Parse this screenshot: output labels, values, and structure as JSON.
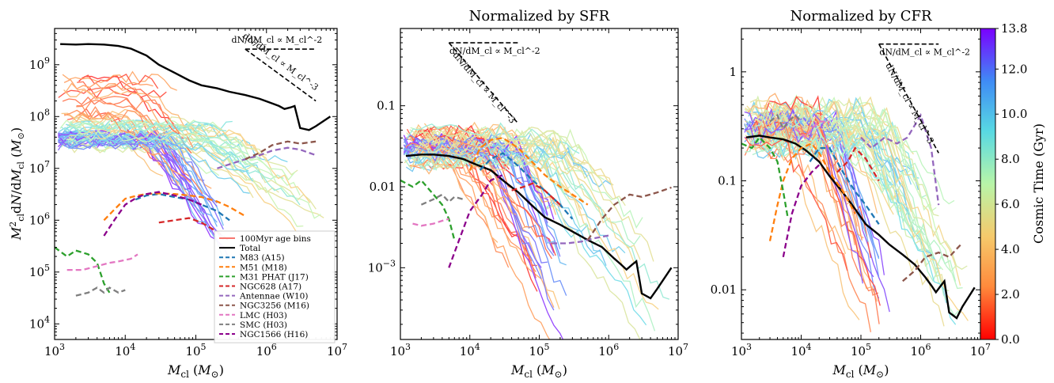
{
  "chart_data": [
    {
      "type": "line",
      "title": "",
      "xlabel": "M_cl (M_⊙)",
      "ylabel": "M²_cl dN/dM_cl (M_⊙)",
      "xscale": "log",
      "yscale": "log",
      "xlim": [
        1000,
        10000000
      ],
      "ylim": [
        5000,
        5000000000
      ],
      "xticks": [
        "10^3",
        "10^4",
        "10^5",
        "10^6",
        "10^7"
      ],
      "yticks": [
        "10^4",
        "10^5",
        "10^6",
        "10^7",
        "10^8",
        "10^9"
      ],
      "annotations": [
        "dN/dM_cl ∝ M_cl^-2",
        "dN/dM_cl ∝ M_cl^-3"
      ],
      "legend_position": "bottom-right",
      "legend": [
        {
          "label": "100Myr age bins",
          "color": "#f7766f",
          "style": "solid"
        },
        {
          "label": "Total",
          "color": "#000000",
          "style": "solid"
        },
        {
          "label": "M83 (A15)",
          "color": "#1f77b4",
          "style": "dashed"
        },
        {
          "label": "M51 (M18)",
          "color": "#ff7f0e",
          "style": "dashed"
        },
        {
          "label": "M31 PHAT (J17)",
          "color": "#2ca02c",
          "style": "dashed"
        },
        {
          "label": "NGC628 (A17)",
          "color": "#d62728",
          "style": "dashed"
        },
        {
          "label": "Antennae (W10)",
          "color": "#9467bd",
          "style": "dashed"
        },
        {
          "label": "NGC3256 (M16)",
          "color": "#8c564b",
          "style": "dashed"
        },
        {
          "label": "LMC (H03)",
          "color": "#e377c2",
          "style": "dashed"
        },
        {
          "label": "SMC (H03)",
          "color": "#7f7f7f",
          "style": "dashed"
        },
        {
          "label": "NGC1566 (H16)",
          "color": "#8b008b",
          "style": "dashed"
        }
      ],
      "series": [
        {
          "name": "Total",
          "color": "#000000",
          "x": [
            1200,
            2000,
            3000,
            5000,
            8000,
            12000,
            20000,
            30000,
            50000,
            80000,
            120000,
            200000,
            300000,
            500000,
            800000,
            1200000,
            1500000,
            1800000,
            2200000,
            2500000,
            3000000,
            4000000,
            5000000,
            8000000
          ],
          "y": [
            2500000000.0,
            2450000000.0,
            2500000000.0,
            2450000000.0,
            2300000000.0,
            2050000000.0,
            1500000000.0,
            1000000000.0,
            700000000.0,
            500000000.0,
            400000000.0,
            350000000.0,
            300000000.0,
            260000000.0,
            220000000.0,
            180000000.0,
            160000000.0,
            140000000.0,
            150000000.0,
            160000000.0,
            60000000.0,
            55000000.0,
            65000000.0,
            100000000.0
          ]
        },
        {
          "name": "M83 (A15)",
          "color": "#1f77b4",
          "x": [
            14000,
            20000,
            30000,
            50000,
            80000,
            120000,
            200000,
            300000
          ],
          "y": [
            2500000.0,
            3000000.0,
            3200000.0,
            2800000.0,
            2500000.0,
            2000000.0,
            1500000.0,
            1000000.0
          ]
        },
        {
          "name": "M51 (M18)",
          "color": "#ff7f0e",
          "x": [
            5000,
            7000,
            10000,
            15000,
            20000,
            30000,
            50000,
            80000,
            120000,
            200000,
            300000,
            500000
          ],
          "y": [
            1000000.0,
            1600000.0,
            2600000.0,
            3000000.0,
            3200000.0,
            3300000.0,
            3200000.0,
            3000000.0,
            2800000.0,
            2300000.0,
            1800000.0,
            1200000.0
          ]
        },
        {
          "name": "M31 PHAT (J17)",
          "color": "#2ca02c",
          "x": [
            1000,
            1500,
            2000,
            3000,
            4000,
            5000,
            6000
          ],
          "y": [
            300000.0,
            200000.0,
            260000.0,
            220000.0,
            150000.0,
            60000.0,
            40000.0
          ]
        },
        {
          "name": "NGC628 (A17)",
          "color": "#d62728",
          "x": [
            30000,
            50000,
            80000,
            120000,
            200000,
            300000
          ],
          "y": [
            900000.0,
            1000000.0,
            1100000.0,
            900000.0,
            600000.0,
            400000.0
          ]
        },
        {
          "name": "Antennae (W10)",
          "color": "#9467bd",
          "x": [
            200000,
            300000,
            500000,
            800000,
            1200000,
            2000000,
            3000000,
            5000000
          ],
          "y": [
            10000000.0,
            12000000.0,
            15000000.0,
            18000000.0,
            22000000.0,
            25000000.0,
            23000000.0,
            18000000.0
          ]
        },
        {
          "name": "NGC3256 (M16)",
          "color": "#8c564b",
          "x": [
            500000,
            800000,
            1200000,
            2000000,
            3000000,
            5000000
          ],
          "y": [
            15000000.0,
            20000000.0,
            28000000.0,
            33000000.0,
            30000000.0,
            33000000.0
          ]
        },
        {
          "name": "LMC (H03)",
          "color": "#e377c2",
          "x": [
            1500,
            2500,
            4000,
            6000,
            8000,
            12000,
            15000
          ],
          "y": [
            110000.0,
            110000.0,
            130000.0,
            150000.0,
            160000.0,
            180000.0,
            220000.0
          ]
        },
        {
          "name": "SMC (H03)",
          "color": "#7f7f7f",
          "x": [
            2000,
            3000,
            4000,
            5000,
            6000,
            8000,
            10000
          ],
          "y": [
            35000.0,
            40000.0,
            50000.0,
            40000.0,
            50000.0,
            40000.0,
            45000.0
          ]
        },
        {
          "name": "NGC1566 (H16)",
          "color": "#8b008b",
          "x": [
            5000,
            7000,
            10000,
            15000,
            20000,
            30000,
            50000,
            80000,
            120000
          ],
          "y": [
            500000.0,
            1000000.0,
            2000000.0,
            2800000.0,
            3200000.0,
            3500000.0,
            3000000.0,
            2500000.0,
            2000000.0
          ]
        }
      ]
    },
    {
      "type": "line",
      "title": "Normalized by SFR",
      "xlabel": "M_cl (M_⊙)",
      "ylabel": "",
      "xscale": "log",
      "yscale": "log",
      "xlim": [
        1000,
        10000000
      ],
      "ylim": [
        0.00013,
        0.9
      ],
      "xticks": [
        "10^3",
        "10^4",
        "10^5",
        "10^6",
        "10^7"
      ],
      "yticks": [
        "10^-3",
        "0.01",
        "0.1"
      ],
      "annotations": [
        "dN/dM_cl ∝ M_cl^-2",
        "dN/dM_cl ∝ M_cl^-3"
      ],
      "series": [
        {
          "name": "Total",
          "color": "#000000",
          "x": [
            1200,
            2000,
            3000,
            5000,
            8000,
            12000,
            20000,
            30000,
            50000,
            80000,
            120000,
            200000,
            300000,
            500000,
            800000,
            1200000,
            1500000,
            1800000,
            2200000,
            2500000,
            3000000,
            4000000,
            5000000,
            8000000
          ],
          "y": [
            0.024,
            0.025,
            0.025,
            0.024,
            0.022,
            0.019,
            0.016,
            0.012,
            0.0085,
            0.0058,
            0.0042,
            0.0034,
            0.0028,
            0.0022,
            0.0018,
            0.0013,
            0.0011,
            0.00095,
            0.0011,
            0.0012,
            0.00048,
            0.00042,
            0.00055,
            0.001
          ]
        },
        {
          "name": "M83 (A15)",
          "color": "#1f77b4",
          "x": [
            14000,
            20000,
            30000,
            50000,
            80000,
            120000,
            200000,
            300000
          ],
          "y": [
            0.016,
            0.022,
            0.026,
            0.018,
            0.012,
            0.009,
            0.006,
            0.004
          ]
        },
        {
          "name": "M51 (M18)",
          "color": "#ff7f0e",
          "x": [
            10000,
            14000,
            20000,
            30000,
            50000,
            80000,
            120000,
            200000,
            300000,
            500000
          ],
          "y": [
            0.016,
            0.03,
            0.038,
            0.04,
            0.03,
            0.02,
            0.014,
            0.01,
            0.008,
            0.006
          ]
        },
        {
          "name": "M31 PHAT (J17)",
          "color": "#2ca02c",
          "x": [
            1000,
            1500,
            2000,
            3000,
            4000,
            5000,
            6000
          ],
          "y": [
            0.012,
            0.01,
            0.012,
            0.008,
            0.006,
            0.004,
            0.0022
          ]
        },
        {
          "name": "NGC628 (A17)",
          "color": "#d62728",
          "x": [
            40000,
            60000,
            80000,
            120000,
            200000
          ],
          "y": [
            0.009,
            0.01,
            0.011,
            0.009,
            0.006
          ]
        },
        {
          "name": "Antennae (W10)",
          "color": "#9467bd",
          "x": [
            150000,
            250000,
            400000,
            600000,
            1000000
          ],
          "y": [
            0.002,
            0.002,
            0.0021,
            0.0023,
            0.0025
          ]
        },
        {
          "name": "NGC3256 (M16)",
          "color": "#8c564b",
          "x": [
            500000,
            800000,
            1200000,
            2000000,
            3000000,
            5000000,
            8000000
          ],
          "y": [
            0.0022,
            0.004,
            0.006,
            0.008,
            0.0075,
            0.0085,
            0.0098
          ]
        },
        {
          "name": "LMC (H03)",
          "color": "#e377c2",
          "x": [
            1500,
            2000,
            3000,
            4000,
            5000
          ],
          "y": [
            0.0035,
            0.0033,
            0.0035,
            0.0038,
            0.004
          ]
        },
        {
          "name": "SMC (H03)",
          "color": "#7f7f7f",
          "x": [
            2000,
            3000,
            4000,
            5000,
            6000,
            8000
          ],
          "y": [
            0.006,
            0.007,
            0.008,
            0.0065,
            0.0075,
            0.007
          ]
        },
        {
          "name": "NGC1566 (H16)",
          "color": "#8b008b",
          "x": [
            5000,
            7000,
            10000,
            15000,
            20000,
            30000
          ],
          "y": [
            0.001,
            0.0022,
            0.005,
            0.008,
            0.012,
            0.014
          ]
        }
      ]
    },
    {
      "type": "line",
      "title": "Normalized by CFR",
      "xlabel": "M_cl (M_⊙)",
      "ylabel": "",
      "xscale": "log",
      "yscale": "log",
      "xlim": [
        1000,
        10000000
      ],
      "ylim": [
        0.0035,
        2.5
      ],
      "xticks": [
        "10^3",
        "10^4",
        "10^5",
        "10^6",
        "10^7"
      ],
      "yticks": [
        "0.01",
        "0.1",
        "1"
      ],
      "annotations": [
        "dN/dM_cl ∝ M_cl^-2",
        "dN/dM_cl ∝ M_cl^-3"
      ],
      "series": [
        {
          "name": "Total",
          "color": "#000000",
          "x": [
            1200,
            2000,
            3000,
            5000,
            8000,
            12000,
            20000,
            30000,
            50000,
            80000,
            120000,
            200000,
            300000,
            500000,
            800000,
            1200000,
            1500000,
            1800000,
            2200000,
            2500000,
            3000000,
            4000000,
            5000000,
            8000000
          ],
          "y": [
            0.25,
            0.26,
            0.25,
            0.24,
            0.22,
            0.19,
            0.15,
            0.11,
            0.078,
            0.055,
            0.04,
            0.032,
            0.026,
            0.021,
            0.017,
            0.013,
            0.011,
            0.0095,
            0.011,
            0.012,
            0.0062,
            0.0055,
            0.007,
            0.0105
          ]
        },
        {
          "name": "M83 (A15)",
          "color": "#1f77b4",
          "x": [
            14000,
            20000,
            30000,
            50000,
            80000,
            120000,
            200000
          ],
          "y": [
            0.15,
            0.2,
            0.2,
            0.12,
            0.08,
            0.06,
            0.04
          ]
        },
        {
          "name": "M51 (M18)",
          "color": "#ff7f0e",
          "x": [
            3000,
            4000,
            5000,
            7000,
            10000,
            15000,
            20000,
            30000,
            50000,
            80000
          ],
          "y": [
            0.028,
            0.06,
            0.1,
            0.16,
            0.2,
            0.22,
            0.18,
            0.12,
            0.08,
            0.05
          ]
        },
        {
          "name": "M31 PHAT (J17)",
          "color": "#2ca02c",
          "x": [
            1000,
            1500,
            2000,
            3000,
            4000,
            5000,
            6000
          ],
          "y": [
            0.22,
            0.2,
            0.25,
            0.2,
            0.15,
            0.08,
            0.045
          ]
        },
        {
          "name": "NGC628 (A17)",
          "color": "#d62728",
          "x": [
            40000,
            60000,
            80000,
            120000,
            200000
          ],
          "y": [
            0.12,
            0.15,
            0.2,
            0.16,
            0.1
          ]
        },
        {
          "name": "Antennae (W10)",
          "color": "#9467bd",
          "x": [
            100000,
            150000,
            250000,
            400000,
            600000,
            1000000,
            1500000,
            2000000
          ],
          "y": [
            0.25,
            0.2,
            0.25,
            0.22,
            0.25,
            0.4,
            0.2,
            0.06
          ]
        },
        {
          "name": "NGC3256 (M16)",
          "color": "#8c564b",
          "x": [
            500000,
            800000,
            1200000,
            2000000,
            3000000,
            5000000
          ],
          "y": [
            0.012,
            0.015,
            0.02,
            0.022,
            0.02,
            0.027
          ]
        },
        {
          "name": "LMC (H03)",
          "color": "#e377c2",
          "x": [
            8000,
            12000,
            15000,
            20000,
            30000
          ],
          "y": [
            0.3,
            0.25,
            0.3,
            0.35,
            0.35
          ]
        },
        {
          "name": "SMC (H03)",
          "color": "#7f7f7f",
          "x": [
            3000,
            4000,
            5000,
            6000,
            8000,
            10000
          ],
          "y": [
            0.35,
            0.4,
            0.3,
            0.35,
            0.4,
            0.35
          ]
        },
        {
          "name": "NGC1566 (H16)",
          "color": "#8b008b",
          "x": [
            5000,
            7000,
            10000,
            15000,
            20000
          ],
          "y": [
            0.02,
            0.05,
            0.09,
            0.12,
            0.14
          ]
        }
      ]
    }
  ],
  "colorbar": {
    "label": "Cosmic Time (Gyr)",
    "ticks": [
      "0.0",
      "2.0",
      "4.0",
      "6.0",
      "8.0",
      "10.0",
      "12.0",
      "13.8"
    ],
    "range": [
      0,
      13.8
    ],
    "colormap": "rainbow"
  }
}
